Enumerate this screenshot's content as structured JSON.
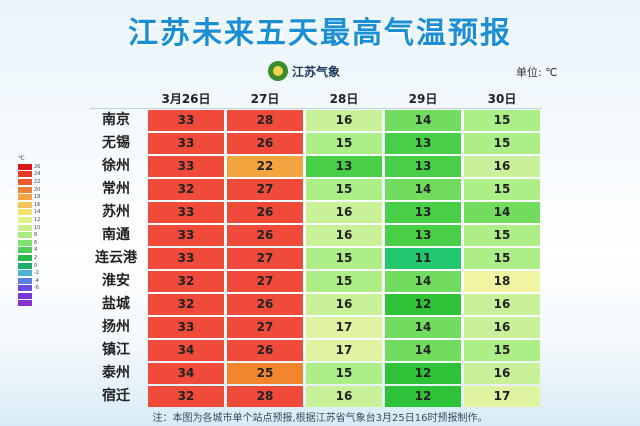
{
  "title": "江苏未来五天最高气温预报",
  "logo_text": "江苏气象",
  "unit_label": "单位: ℃",
  "legend": {
    "unit": "℃",
    "labels": [
      "26",
      "24",
      "22",
      "20",
      "18",
      "16",
      "14",
      "12",
      "10",
      "8",
      "6",
      "4",
      "2",
      "0",
      "-2",
      "-4",
      "-6"
    ],
    "colors": [
      "#d91818",
      "#e53b22",
      "#ee5a2c",
      "#f07f37",
      "#f3a343",
      "#f6c457",
      "#f4e36c",
      "#e5f08a",
      "#ccef8b",
      "#a8eb82",
      "#7fe26d",
      "#4fce57",
      "#26bb4b",
      "#1cac6e",
      "#47b3d1",
      "#5a7fe0",
      "#6a4fdf",
      "#7a37d6",
      "#8a2fd0"
    ]
  },
  "dates": [
    "3月26日",
    "27日",
    "28日",
    "29日",
    "30日"
  ],
  "rows": [
    {
      "city": "南京",
      "temps": [
        "33",
        "28",
        "16",
        "14",
        "15"
      ]
    },
    {
      "city": "无锡",
      "temps": [
        "33",
        "26",
        "15",
        "13",
        "15"
      ]
    },
    {
      "city": "徐州",
      "temps": [
        "33",
        "22",
        "13",
        "13",
        "16"
      ]
    },
    {
      "city": "常州",
      "temps": [
        "32",
        "27",
        "15",
        "14",
        "15"
      ]
    },
    {
      "city": "苏州",
      "temps": [
        "33",
        "26",
        "16",
        "13",
        "14"
      ]
    },
    {
      "city": "南通",
      "temps": [
        "33",
        "26",
        "16",
        "13",
        "15"
      ]
    },
    {
      "city": "连云港",
      "temps": [
        "33",
        "27",
        "15",
        "11",
        "15"
      ]
    },
    {
      "city": "淮安",
      "temps": [
        "32",
        "27",
        "15",
        "14",
        "18"
      ]
    },
    {
      "city": "盐城",
      "temps": [
        "32",
        "26",
        "16",
        "12",
        "16"
      ]
    },
    {
      "city": "扬州",
      "temps": [
        "33",
        "27",
        "17",
        "14",
        "16"
      ]
    },
    {
      "city": "镇江",
      "temps": [
        "34",
        "26",
        "17",
        "14",
        "15"
      ]
    },
    {
      "city": "泰州",
      "temps": [
        "34",
        "25",
        "15",
        "12",
        "16"
      ]
    },
    {
      "city": "宿迁",
      "temps": [
        "32",
        "28",
        "16",
        "12",
        "17"
      ]
    }
  ],
  "cell_colors": {
    "34": "#ef4a3a",
    "33": "#ef4a3a",
    "32": "#ef4a3a",
    "28": "#ef4a3a",
    "27": "#ef4a3a",
    "26": "#ef4a3a",
    "25": "#f2862f",
    "22": "#f2a53f",
    "18": "#f1f5a2",
    "17": "#dff3a0",
    "16": "#c9f19a",
    "15": "#aeee86",
    "14": "#72dc5e",
    "13": "#48ce47",
    "12": "#2dc238",
    "11": "#22c870"
  },
  "footnote": "注：本图为各城市单个站点预报,根据江苏省气象台3月25日16时预报制作。"
}
